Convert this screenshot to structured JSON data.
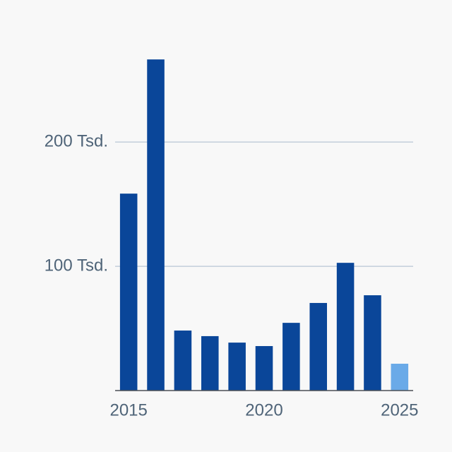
{
  "chart_data": {
    "type": "bar",
    "x": [
      2015,
      2016,
      2017,
      2018,
      2019,
      2020,
      2021,
      2022,
      2023,
      2024,
      2025
    ],
    "values": [
      158500,
      266500,
      48300,
      43800,
      38600,
      35800,
      54500,
      70500,
      102800,
      76700,
      21600
    ],
    "colors": [
      "#0a4699",
      "#0a4699",
      "#0a4699",
      "#0a4699",
      "#0a4699",
      "#0a4699",
      "#0a4699",
      "#0a4699",
      "#0a4699",
      "#0a4699",
      "#6aaae8"
    ],
    "xlim": [
      2014.5,
      2025.5
    ],
    "xticks": [
      2015,
      2020,
      2025
    ],
    "ylim": [
      0,
      270000
    ],
    "yticks": [
      {
        "value": 100000,
        "label": "100 Tsd."
      },
      {
        "value": 200000,
        "label": "200 Tsd."
      }
    ],
    "grid": true
  }
}
